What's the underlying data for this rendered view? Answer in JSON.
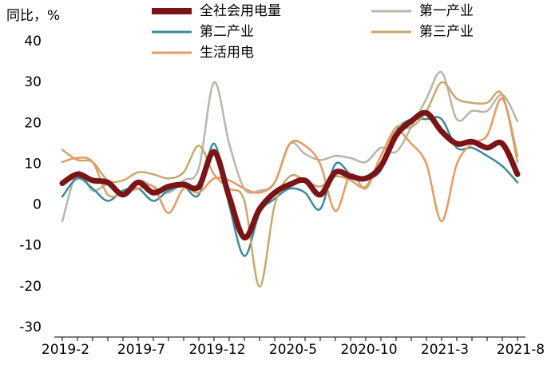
{
  "chart_data": {
    "type": "line",
    "y_label": "同比，%",
    "categories": [
      "2019-2",
      null,
      null,
      null,
      null,
      "2019-7",
      null,
      null,
      null,
      null,
      "2019-12",
      null,
      null,
      null,
      null,
      "2020-5",
      null,
      null,
      null,
      null,
      "2020-10",
      null,
      null,
      null,
      null,
      "2021-3",
      null,
      null,
      null,
      null,
      "2021-8"
    ],
    "ylim": [
      -30,
      40
    ],
    "yticks": [
      -30,
      -20,
      -10,
      0,
      10,
      20,
      30,
      40
    ],
    "grid": false,
    "series": [
      {
        "name": "全社会用电量",
        "color": "#7b1416",
        "values": [
          5.3,
          7.5,
          6,
          5.5,
          2.5,
          5.5,
          3,
          4.5,
          5,
          4.5,
          13,
          2,
          -8,
          -1,
          3,
          5,
          6,
          2.5,
          8,
          7,
          6.5,
          9.5,
          17,
          20.5,
          22.5,
          18,
          15,
          15.5,
          14,
          15,
          7.5
        ]
      },
      {
        "name": "第一产业",
        "color": "#b8b6a8",
        "values": [
          -4,
          8,
          3.5,
          5,
          3,
          6,
          4.5,
          3,
          6,
          9,
          30,
          15,
          4,
          3.5,
          5.5,
          15,
          12.5,
          11,
          12,
          11.5,
          10.5,
          14,
          13,
          19,
          26,
          32.5,
          21,
          23,
          23,
          27,
          20.5
        ]
      },
      {
        "name": "第二产业",
        "color": "#3a8a9e",
        "values": [
          2,
          6.5,
          4,
          1,
          3.5,
          4,
          1,
          3.5,
          4.5,
          2.5,
          15,
          0,
          -12.5,
          -2,
          1.5,
          4,
          3,
          -1,
          10,
          7.5,
          6.5,
          8.5,
          18,
          21,
          21,
          21,
          14,
          14,
          12,
          9.5,
          5.5
        ]
      },
      {
        "name": "第三产业",
        "color": "#c9a86b",
        "values": [
          13.5,
          11,
          10.5,
          6,
          6,
          8,
          7.5,
          6.5,
          8,
          14.5,
          7.5,
          4,
          1,
          -20,
          0,
          7,
          6,
          4.5,
          7,
          6,
          4.5,
          12,
          19,
          19,
          23,
          30,
          26,
          25,
          25,
          27,
          10.5
        ]
      },
      {
        "name": "生活用电",
        "color": "#e89a60",
        "values": [
          10.5,
          11.5,
          10.5,
          2.5,
          3,
          4,
          4.5,
          -2,
          4,
          3,
          6.5,
          6,
          4,
          3,
          5.5,
          15,
          14.5,
          10,
          -1.5,
          7.5,
          4,
          12,
          18,
          15,
          10,
          -4,
          10,
          15,
          17,
          26,
          12
        ]
      }
    ]
  }
}
